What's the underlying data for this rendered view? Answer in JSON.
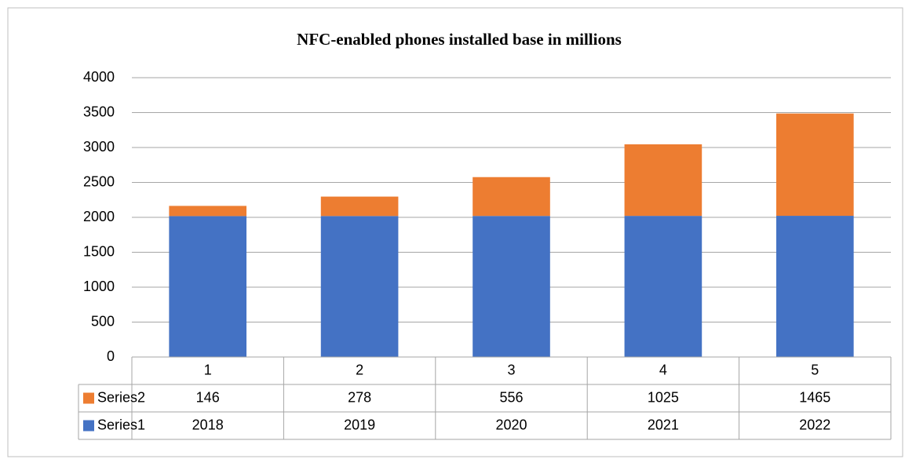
{
  "chart_data": {
    "type": "bar",
    "stacked": true,
    "title": "NFC-enabled phones installed base in millions",
    "categories": [
      "1",
      "2",
      "3",
      "4",
      "5"
    ],
    "series": [
      {
        "name": "Series1",
        "color": "#4472c4",
        "values": [
          2018,
          2019,
          2020,
          2021,
          2022
        ]
      },
      {
        "name": "Series2",
        "color": "#ed7d31",
        "values": [
          146,
          278,
          556,
          1025,
          1465
        ]
      }
    ],
    "ylim": [
      0,
      4000
    ],
    "yticks": [
      0,
      500,
      1000,
      1500,
      2000,
      2500,
      3000,
      3500,
      4000
    ],
    "grid": true,
    "data_table": true
  }
}
